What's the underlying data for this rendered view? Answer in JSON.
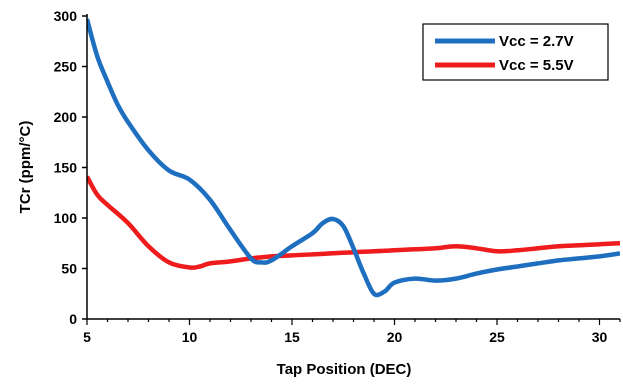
{
  "chart_data": {
    "type": "line",
    "title": "",
    "xlabel": "Tap Position (DEC)",
    "ylabel": "TCr (ppm/°C)",
    "xlim": [
      5,
      31
    ],
    "ylim": [
      0,
      300
    ],
    "xticks": [
      5,
      10,
      15,
      20,
      25,
      30
    ],
    "yticks": [
      0,
      50,
      100,
      150,
      200,
      250,
      300
    ],
    "grid": false,
    "legend_position": "top-right",
    "series": [
      {
        "name": "Vcc = 2.7V",
        "color": "#1f6fc0",
        "x": [
          5,
          5.5,
          6,
          6.5,
          7,
          8,
          9,
          10,
          11,
          12,
          13,
          13.5,
          14,
          15,
          16,
          16.5,
          17,
          17.5,
          18,
          18.5,
          19,
          19.5,
          20,
          21,
          22,
          23,
          24,
          25,
          26,
          27,
          28,
          29,
          30,
          31
        ],
        "y": [
          297,
          260,
          235,
          212,
          195,
          167,
          147,
          138,
          118,
          88,
          60,
          56,
          58,
          72,
          85,
          95,
          99,
          92,
          70,
          45,
          25,
          27,
          36,
          40,
          38,
          40,
          45,
          49,
          52,
          55,
          58,
          60,
          62,
          65
        ]
      },
      {
        "name": "Vcc = 5.5V",
        "color": "#ee1c1c",
        "x": [
          5,
          5.5,
          6,
          7,
          8,
          9,
          10,
          10.5,
          11,
          12,
          13,
          14,
          15,
          16,
          17,
          18,
          19,
          20,
          21,
          22,
          23,
          24,
          25,
          26,
          27,
          28,
          29,
          30,
          31
        ],
        "y": [
          141,
          123,
          113,
          95,
          72,
          56,
          51,
          52,
          55,
          57,
          60,
          62,
          63,
          64,
          65,
          66,
          67,
          68,
          69,
          70,
          72,
          70,
          67,
          68,
          70,
          72,
          73,
          74,
          75
        ]
      }
    ]
  }
}
